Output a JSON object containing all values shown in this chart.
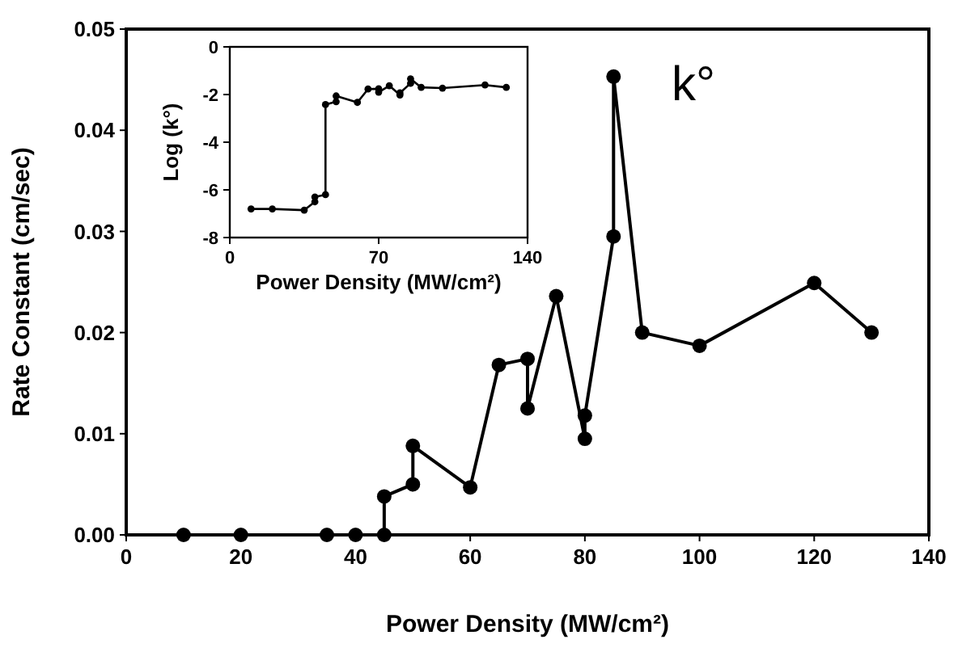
{
  "chart_data": [
    {
      "type": "line",
      "xlabel": "Power Density (MW/cm²)",
      "ylabel": "Rate Constant (cm/sec)",
      "annotations": [
        "k°"
      ],
      "marker": "circle",
      "line_style": "solid",
      "xlim": [
        0,
        140
      ],
      "xticks": [
        0,
        20,
        40,
        60,
        80,
        100,
        120,
        140
      ],
      "ylim": [
        0,
        0.05
      ],
      "yticks": [
        {
          "value": 0,
          "label": "0.00"
        },
        {
          "value": 0.01,
          "label": "0.01"
        },
        {
          "value": 0.02,
          "label": "0.02"
        },
        {
          "value": 0.03,
          "label": "0.03"
        },
        {
          "value": 0.04,
          "label": "0.04"
        },
        {
          "value": 0.05,
          "label": "0.05"
        }
      ],
      "series": [
        {
          "color": "#000000",
          "x": [
            10,
            20,
            35,
            40,
            45,
            45,
            50,
            50,
            60,
            65,
            70,
            70,
            75,
            80,
            80,
            85,
            85,
            90,
            100,
            120,
            130
          ],
          "values": [
            0,
            0,
            0,
            0,
            0,
            0.0038,
            0.005,
            0.0088,
            0.0047,
            0.0168,
            0.0174,
            0.0125,
            0.0236,
            0.0095,
            0.0118,
            0.0295,
            0.0453,
            0.02,
            0.0187,
            0.0249,
            0.02
          ]
        }
      ]
    },
    {
      "type": "line",
      "xlabel": "Power Density (MW/cm²)",
      "ylabel": "Log (k°)",
      "marker": "circle",
      "line_style": "solid",
      "xlim": [
        0,
        140
      ],
      "xticks": [
        0,
        70,
        140
      ],
      "ylim": [
        -8,
        0
      ],
      "yticks": [
        0,
        -2,
        -4,
        -6,
        -8
      ],
      "series": [
        {
          "color": "#000000",
          "x": [
            10,
            20,
            35,
            40,
            40,
            45,
            45,
            50,
            50,
            60,
            65,
            70,
            70,
            75,
            80,
            80,
            85,
            85,
            90,
            100,
            120,
            130
          ],
          "values": [
            -6.8,
            -6.8,
            -6.85,
            -6.5,
            -6.3,
            -6.2,
            -2.42,
            -2.3,
            -2.06,
            -2.33,
            -1.77,
            -1.76,
            -1.9,
            -1.63,
            -2.02,
            -1.93,
            -1.53,
            -1.34,
            -1.7,
            -1.73,
            -1.6,
            -1.7
          ]
        }
      ]
    }
  ]
}
